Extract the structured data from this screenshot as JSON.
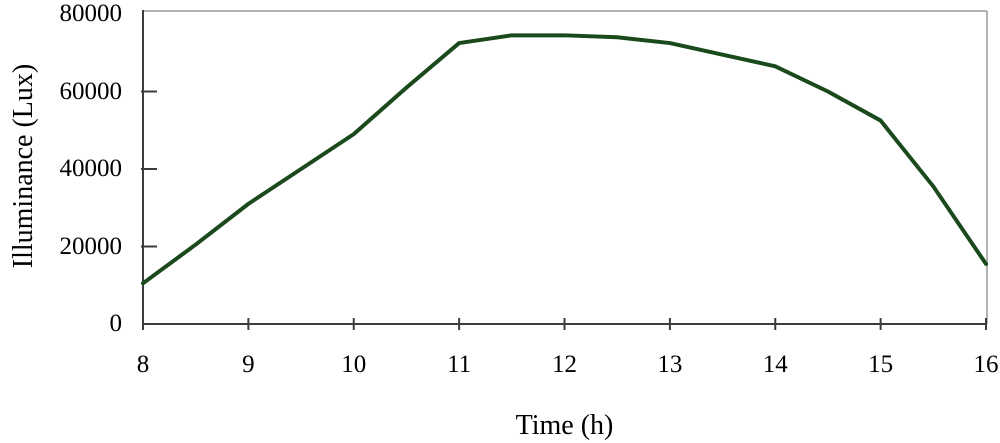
{
  "chart_data": {
    "type": "line",
    "title": "",
    "xlabel": "Time (h)",
    "ylabel": "Illuminance (Lux)",
    "x": [
      8,
      8.5,
      9,
      9.5,
      10,
      10.5,
      11,
      11.5,
      12,
      12.5,
      13,
      13.5,
      14,
      14.5,
      15,
      15.5,
      16
    ],
    "series": [
      {
        "name": "illuminance",
        "values": [
          10500,
          20500,
          31000,
          40000,
          49000,
          61000,
          72500,
          74500,
          74500,
          74000,
          72500,
          69500,
          66500,
          60000,
          52500,
          35500,
          15500
        ]
      }
    ],
    "xlim": [
      8,
      16
    ],
    "ylim": [
      0,
      80000
    ],
    "x_ticks": [
      8,
      9,
      10,
      11,
      12,
      13,
      14,
      15,
      16
    ],
    "y_ticks": [
      0,
      20000,
      40000,
      60000,
      80000
    ],
    "x_tick_labels": [
      "8",
      "9",
      "10",
      "11",
      "12",
      "13",
      "14",
      "15",
      "16"
    ],
    "y_tick_labels": [
      "0",
      "20000",
      "40000",
      "60000",
      "80000"
    ],
    "grid": false,
    "legend": "none",
    "colors": {
      "line": "#1A4A1C",
      "axis": "#3C3C3C",
      "border": "#B2B2B2",
      "text": "#000000",
      "background": "#FFFFFF"
    }
  }
}
